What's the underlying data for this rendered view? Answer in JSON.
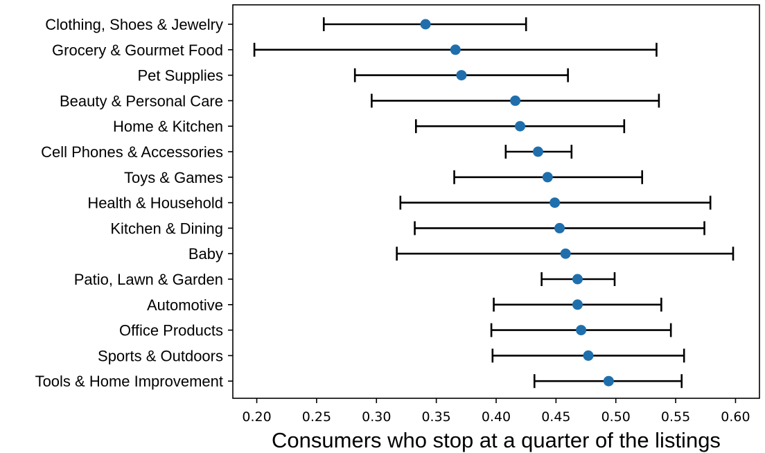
{
  "chart_data": {
    "type": "errorbar-dot",
    "title": "",
    "xlabel": "Consumers who stop at a quarter of the listings",
    "ylabel": "",
    "xlim": [
      0.18,
      0.62
    ],
    "xticks": [
      0.2,
      0.25,
      0.3,
      0.35,
      0.4,
      0.45,
      0.5,
      0.55,
      0.6
    ],
    "xtick_labels": [
      "0.20",
      "0.25",
      "0.30",
      "0.35",
      "0.40",
      "0.45",
      "0.50",
      "0.55",
      "0.60"
    ],
    "grid": false,
    "point_color": "#1f6fad",
    "bar_color": "#000000",
    "categories": [
      {
        "label": "Clothing, Shoes & Jewelry",
        "mean": 0.341,
        "low": 0.256,
        "high": 0.425
      },
      {
        "label": "Grocery & Gourmet Food",
        "mean": 0.366,
        "low": 0.198,
        "high": 0.534
      },
      {
        "label": "Pet Supplies",
        "mean": 0.371,
        "low": 0.282,
        "high": 0.46
      },
      {
        "label": "Beauty & Personal Care",
        "mean": 0.416,
        "low": 0.296,
        "high": 0.536
      },
      {
        "label": "Home & Kitchen",
        "mean": 0.42,
        "low": 0.333,
        "high": 0.507
      },
      {
        "label": "Cell Phones & Accessories",
        "mean": 0.435,
        "low": 0.408,
        "high": 0.463
      },
      {
        "label": "Toys & Games",
        "mean": 0.443,
        "low": 0.365,
        "high": 0.522
      },
      {
        "label": "Health & Household",
        "mean": 0.449,
        "low": 0.32,
        "high": 0.579
      },
      {
        "label": "Kitchen & Dining",
        "mean": 0.453,
        "low": 0.332,
        "high": 0.574
      },
      {
        "label": "Baby",
        "mean": 0.458,
        "low": 0.317,
        "high": 0.598
      },
      {
        "label": "Patio, Lawn & Garden",
        "mean": 0.468,
        "low": 0.438,
        "high": 0.499
      },
      {
        "label": "Automotive",
        "mean": 0.468,
        "low": 0.398,
        "high": 0.538
      },
      {
        "label": "Office Products",
        "mean": 0.471,
        "low": 0.396,
        "high": 0.546
      },
      {
        "label": "Sports & Outdoors",
        "mean": 0.477,
        "low": 0.397,
        "high": 0.557
      },
      {
        "label": "Tools & Home Improvement",
        "mean": 0.494,
        "low": 0.432,
        "high": 0.555
      }
    ]
  }
}
